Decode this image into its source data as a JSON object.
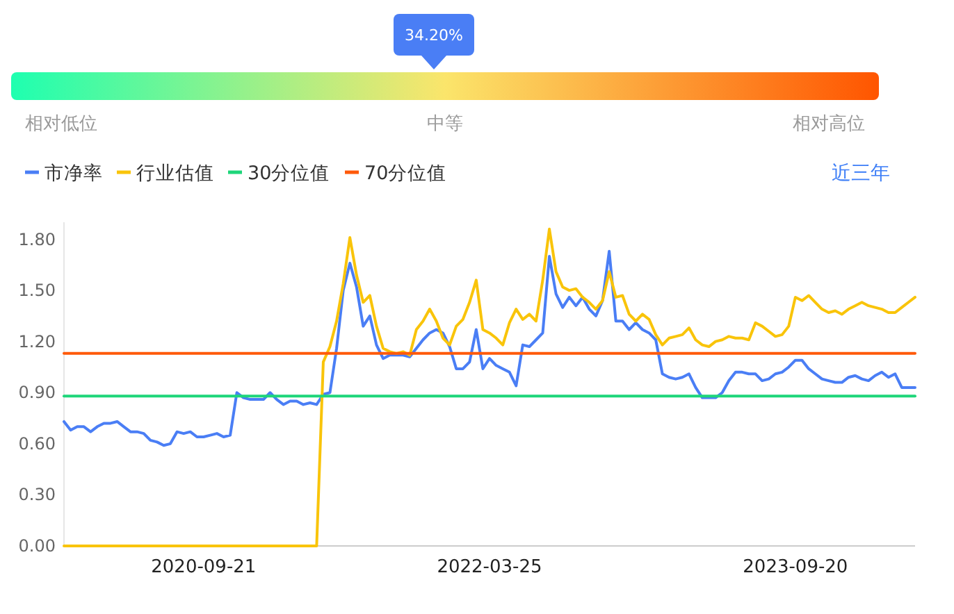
{
  "chart_data": [
    {
      "type": "other",
      "annotations": [
        "34.20%",
        "相对低位",
        "中等",
        "相对高位"
      ],
      "color": "#4a7ef5"
    },
    {
      "type": "line",
      "legend": "top left",
      "annotations": [
        "近三年"
      ],
      "categories": [
        null,
        null,
        null,
        null,
        null,
        null,
        null,
        null,
        null,
        null,
        null,
        null,
        null,
        null,
        null,
        null,
        null,
        null,
        null,
        null,
        null,
        "2020-09-21",
        null,
        null,
        null,
        null,
        null,
        null,
        null,
        null,
        null,
        null,
        null,
        null,
        null,
        null,
        null,
        null,
        null,
        null,
        null,
        null,
        null,
        null,
        null,
        null,
        null,
        null,
        null,
        null,
        null,
        null,
        null,
        null,
        null,
        null,
        null,
        null,
        null,
        null,
        null,
        null,
        null,
        null,
        "2022-03-25",
        null,
        null,
        null,
        null,
        null,
        null,
        null,
        null,
        null,
        null,
        null,
        null,
        null,
        null,
        null,
        null,
        null,
        null,
        null,
        null,
        null,
        null,
        null,
        null,
        null,
        null,
        null,
        null,
        null,
        null,
        null,
        null,
        null,
        null,
        null,
        null,
        null,
        null,
        null,
        null,
        null,
        null,
        null,
        null,
        null,
        "2023-09-20",
        null,
        null,
        null,
        null,
        null,
        null,
        null,
        null,
        null,
        null,
        null,
        null,
        null,
        null,
        null,
        null,
        null,
        null
      ],
      "ylim": [
        0,
        1.9
      ],
      "yticks": [
        {
          "value": 0,
          "label": "0.00"
        },
        {
          "value": 0.3,
          "label": "0.30"
        },
        {
          "value": 0.6,
          "label": "0.60"
        },
        {
          "value": 0.9,
          "label": "0.90"
        },
        {
          "value": 1.2,
          "label": "1.20"
        },
        {
          "value": 1.5,
          "label": "1.50"
        },
        {
          "value": 1.8,
          "label": "1.80"
        }
      ],
      "line_style": "solid",
      "marker": "none",
      "series": [
        {
          "name": "市净率",
          "color": "#4a7ef5",
          "values": [
            0.73,
            0.68,
            0.7,
            0.7,
            0.67,
            0.7,
            0.72,
            0.72,
            0.73,
            0.7,
            0.67,
            0.67,
            0.66,
            0.62,
            0.61,
            0.59,
            0.6,
            0.67,
            0.66,
            0.67,
            0.64,
            0.64,
            0.65,
            0.66,
            0.64,
            0.65,
            0.9,
            0.87,
            0.86,
            0.86,
            0.86,
            0.9,
            0.86,
            0.83,
            0.85,
            0.85,
            0.83,
            0.84,
            0.83,
            0.89,
            0.9,
            1.16,
            1.5,
            1.66,
            1.52,
            1.29,
            1.35,
            1.18,
            1.1,
            1.12,
            1.12,
            1.12,
            1.11,
            1.16,
            1.21,
            1.25,
            1.27,
            1.25,
            1.17,
            1.04,
            1.04,
            1.08,
            1.27,
            1.04,
            1.1,
            1.06,
            1.04,
            1.02,
            0.94,
            1.18,
            1.17,
            1.21,
            1.25,
            1.7,
            1.48,
            1.4,
            1.46,
            1.41,
            1.46,
            1.39,
            1.35,
            1.44,
            1.73,
            1.32,
            1.32,
            1.27,
            1.31,
            1.27,
            1.25,
            1.21,
            1.01,
            0.99,
            0.98,
            0.99,
            1.01,
            0.93,
            0.87,
            0.87,
            0.87,
            0.9,
            0.97,
            1.02,
            1.02,
            1.01,
            1.01,
            0.97,
            0.98,
            1.01,
            1.02,
            1.05,
            1.09,
            1.09,
            1.04,
            1.01,
            0.98,
            0.97,
            0.96,
            0.96,
            0.99,
            1.0,
            0.98,
            0.97,
            1.0,
            1.02,
            0.99,
            1.01,
            0.93,
            0.93,
            0.93
          ]
        },
        {
          "name": "行业估值",
          "color": "#f9c40a",
          "values": [
            0,
            0,
            0,
            0,
            0,
            0,
            0,
            0,
            0,
            0,
            0,
            0,
            0,
            0,
            0,
            0,
            0,
            0,
            0,
            0,
            0,
            0,
            0,
            0,
            0,
            0,
            0,
            0,
            0,
            0,
            0,
            0,
            0,
            0,
            0,
            0,
            0,
            0,
            0,
            1.08,
            1.17,
            1.32,
            1.54,
            1.81,
            1.59,
            1.43,
            1.47,
            1.29,
            1.16,
            1.14,
            1.13,
            1.14,
            1.12,
            1.27,
            1.32,
            1.39,
            1.32,
            1.22,
            1.18,
            1.29,
            1.33,
            1.43,
            1.56,
            1.27,
            1.25,
            1.22,
            1.18,
            1.31,
            1.39,
            1.33,
            1.36,
            1.32,
            1.56,
            1.86,
            1.61,
            1.52,
            1.5,
            1.51,
            1.46,
            1.43,
            1.39,
            1.44,
            1.61,
            1.46,
            1.47,
            1.36,
            1.32,
            1.36,
            1.33,
            1.24,
            1.18,
            1.22,
            1.23,
            1.24,
            1.28,
            1.21,
            1.18,
            1.17,
            1.2,
            1.21,
            1.23,
            1.22,
            1.22,
            1.21,
            1.31,
            1.29,
            1.26,
            1.23,
            1.24,
            1.29,
            1.46,
            1.44,
            1.47,
            1.43,
            1.39,
            1.37,
            1.38,
            1.36,
            1.39,
            1.41,
            1.43,
            1.41,
            1.4,
            1.39,
            1.37,
            1.37,
            1.4,
            1.43,
            1.46
          ]
        },
        {
          "name": "30分位值",
          "color": "#1ed67a",
          "values": [
            0.88,
            0.88,
            0.88,
            0.88,
            0.88,
            0.88,
            0.88,
            0.88,
            0.88,
            0.88,
            0.88,
            0.88,
            0.88,
            0.88,
            0.88,
            0.88,
            0.88,
            0.88,
            0.88,
            0.88,
            0.88,
            0.88,
            0.88,
            0.88,
            0.88,
            0.88,
            0.88,
            0.88,
            0.88,
            0.88,
            0.88,
            0.88,
            0.88,
            0.88,
            0.88,
            0.88,
            0.88,
            0.88,
            0.88,
            0.88,
            0.88,
            0.88,
            0.88,
            0.88,
            0.88,
            0.88,
            0.88,
            0.88,
            0.88,
            0.88,
            0.88,
            0.88,
            0.88,
            0.88,
            0.88,
            0.88,
            0.88,
            0.88,
            0.88,
            0.88,
            0.88,
            0.88,
            0.88,
            0.88,
            0.88,
            0.88,
            0.88,
            0.88,
            0.88,
            0.88,
            0.88,
            0.88,
            0.88,
            0.88,
            0.88,
            0.88,
            0.88,
            0.88,
            0.88,
            0.88,
            0.88,
            0.88,
            0.88,
            0.88,
            0.88,
            0.88,
            0.88,
            0.88,
            0.88,
            0.88,
            0.88,
            0.88,
            0.88,
            0.88,
            0.88,
            0.88,
            0.88,
            0.88,
            0.88,
            0.88,
            0.88,
            0.88,
            0.88,
            0.88,
            0.88,
            0.88,
            0.88,
            0.88,
            0.88,
            0.88,
            0.88,
            0.88,
            0.88,
            0.88,
            0.88,
            0.88,
            0.88,
            0.88,
            0.88,
            0.88,
            0.88,
            0.88,
            0.88,
            0.88,
            0.88,
            0.88,
            0.88,
            0.88,
            0.88
          ]
        },
        {
          "name": "70分位值",
          "color": "#ff5a0a",
          "values": [
            1.13,
            1.13,
            1.13,
            1.13,
            1.13,
            1.13,
            1.13,
            1.13,
            1.13,
            1.13,
            1.13,
            1.13,
            1.13,
            1.13,
            1.13,
            1.13,
            1.13,
            1.13,
            1.13,
            1.13,
            1.13,
            1.13,
            1.13,
            1.13,
            1.13,
            1.13,
            1.13,
            1.13,
            1.13,
            1.13,
            1.13,
            1.13,
            1.13,
            1.13,
            1.13,
            1.13,
            1.13,
            1.13,
            1.13,
            1.13,
            1.13,
            1.13,
            1.13,
            1.13,
            1.13,
            1.13,
            1.13,
            1.13,
            1.13,
            1.13,
            1.13,
            1.13,
            1.13,
            1.13,
            1.13,
            1.13,
            1.13,
            1.13,
            1.13,
            1.13,
            1.13,
            1.13,
            1.13,
            1.13,
            1.13,
            1.13,
            1.13,
            1.13,
            1.13,
            1.13,
            1.13,
            1.13,
            1.13,
            1.13,
            1.13,
            1.13,
            1.13,
            1.13,
            1.13,
            1.13,
            1.13,
            1.13,
            1.13,
            1.13,
            1.13,
            1.13,
            1.13,
            1.13,
            1.13,
            1.13,
            1.13,
            1.13,
            1.13,
            1.13,
            1.13,
            1.13,
            1.13,
            1.13,
            1.13,
            1.13,
            1.13,
            1.13,
            1.13,
            1.13,
            1.13,
            1.13,
            1.13,
            1.13,
            1.13,
            1.13,
            1.13,
            1.13,
            1.13,
            1.13,
            1.13,
            1.13,
            1.13,
            1.13,
            1.13,
            1.13,
            1.13,
            1.13,
            1.13,
            1.13,
            1.13,
            1.13,
            1.13,
            1.13,
            1.13
          ]
        }
      ]
    }
  ]
}
